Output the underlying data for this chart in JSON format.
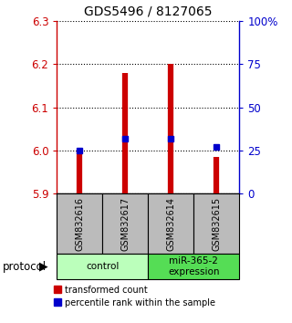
{
  "title": "GDS5496 / 8127065",
  "samples": [
    "GSM832616",
    "GSM832617",
    "GSM832614",
    "GSM832615"
  ],
  "groups": [
    {
      "label": "control",
      "n_samples": 2,
      "color": "#bbffbb"
    },
    {
      "label": "miR-365-2\nexpression",
      "n_samples": 2,
      "color": "#55dd55"
    }
  ],
  "transformed_counts": [
    6.0,
    6.18,
    6.2,
    5.985
  ],
  "percentile_ranks": [
    25,
    32,
    32,
    27
  ],
  "ylim": [
    5.9,
    6.3
  ],
  "yticks_left": [
    5.9,
    6.0,
    6.1,
    6.2,
    6.3
  ],
  "yticks_right": [
    0,
    25,
    50,
    75,
    100
  ],
  "bar_color": "#cc0000",
  "percentile_color": "#0000cc",
  "bar_bottom": 5.9,
  "left_label_color": "#cc0000",
  "right_label_color": "#0000cc",
  "sample_box_color": "#bbbbbb",
  "legend_red_label": "transformed count",
  "legend_blue_label": "percentile rank within the sample",
  "protocol_label": "protocol"
}
